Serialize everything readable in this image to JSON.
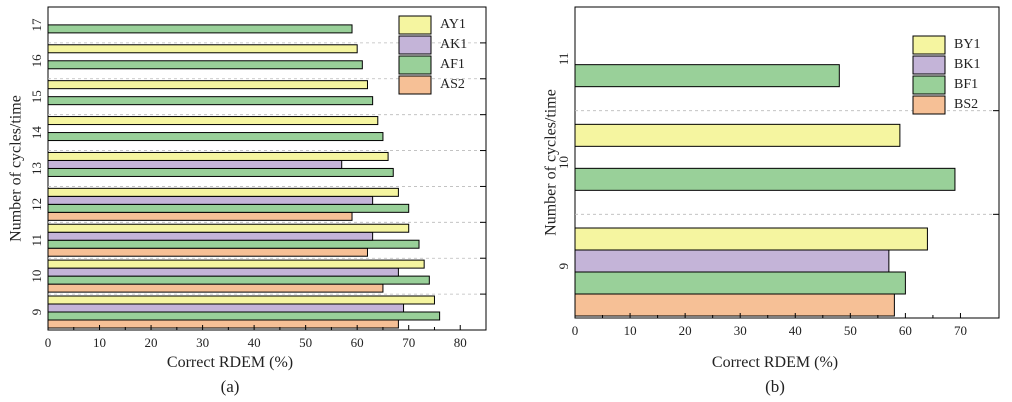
{
  "figure": {
    "panels": [
      {
        "label": "(a)"
      },
      {
        "label": "(b)"
      }
    ]
  },
  "chart_data": [
    {
      "type": "bar",
      "orientation": "horizontal",
      "panel_label": "(a)",
      "xlabel": "Correct RDEM (%)",
      "ylabel": "Number of cycles/time",
      "xlim": [
        0,
        85
      ],
      "xticks": [
        0,
        10,
        20,
        30,
        40,
        50,
        60,
        70,
        80
      ],
      "categories": [
        "9",
        "10",
        "11",
        "12",
        "13",
        "14",
        "15",
        "16",
        "17"
      ],
      "legend_position": "top-right",
      "series": [
        {
          "name": "AY1",
          "color": "#f5f5a0",
          "values": [
            75,
            73,
            70,
            68,
            66,
            64,
            62,
            60,
            null
          ]
        },
        {
          "name": "AK1",
          "color": "#c4b4d8",
          "values": [
            69,
            68,
            63,
            63,
            57,
            null,
            null,
            null,
            null
          ]
        },
        {
          "name": "AF1",
          "color": "#99d099",
          "values": [
            76,
            74,
            72,
            70,
            67,
            65,
            63,
            61,
            59
          ]
        },
        {
          "name": "AS2",
          "color": "#f6c096",
          "values": [
            68,
            65,
            62,
            59,
            null,
            null,
            null,
            null,
            null
          ]
        }
      ]
    },
    {
      "type": "bar",
      "orientation": "horizontal",
      "panel_label": "(b)",
      "xlabel": "Correct RDEM (%)",
      "ylabel": "Number of cycles/time",
      "xlim": [
        0,
        77
      ],
      "xticks": [
        0,
        10,
        20,
        30,
        40,
        50,
        60,
        70
      ],
      "categories": [
        "9",
        "10",
        "11"
      ],
      "legend_position": "top-right",
      "series": [
        {
          "name": "BY1",
          "color": "#f5f5a0",
          "values": [
            64,
            59,
            null
          ]
        },
        {
          "name": "BK1",
          "color": "#c4b4d8",
          "values": [
            57,
            null,
            null
          ]
        },
        {
          "name": "BF1",
          "color": "#99d099",
          "values": [
            60,
            69,
            48
          ]
        },
        {
          "name": "BS2",
          "color": "#f6c096",
          "values": [
            58,
            null,
            null
          ]
        }
      ]
    }
  ]
}
